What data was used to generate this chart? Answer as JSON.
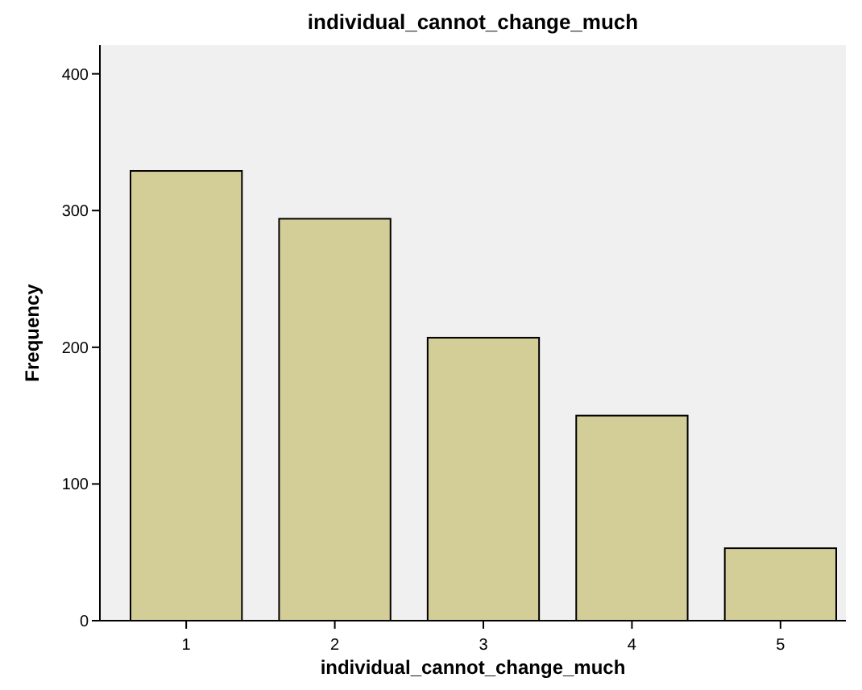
{
  "chart_data": {
    "type": "bar",
    "title": "individual_cannot_change_much",
    "xlabel": "individual_cannot_change_much",
    "ylabel": "Frequency",
    "categories": [
      "1",
      "2",
      "3",
      "4",
      "5"
    ],
    "values": [
      329,
      294,
      207,
      150,
      53
    ],
    "color": "#d3ce97",
    "ylim": [
      0,
      421
    ],
    "yticks": [
      0,
      100,
      200,
      300,
      400
    ],
    "grid": false
  }
}
